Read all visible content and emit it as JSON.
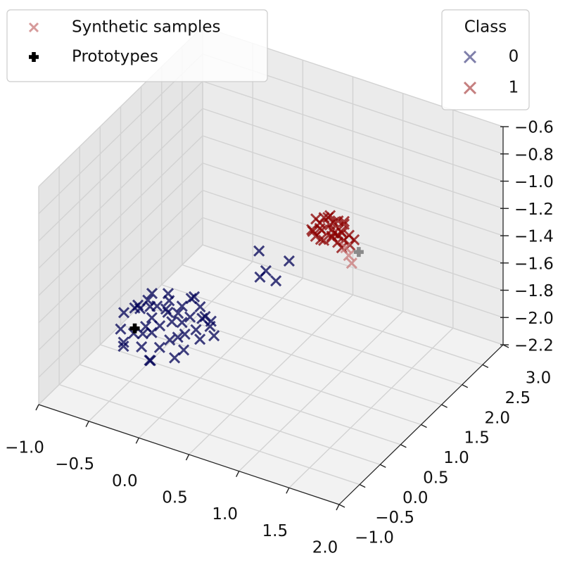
{
  "chart_data": {
    "type": "scatter3d",
    "xlim": [
      -1,
      2
    ],
    "ylim": [
      -1,
      3
    ],
    "zlim": [
      -2.2,
      -0.6
    ],
    "xticks": [
      {
        "value": -1,
        "label": "−1.0"
      },
      {
        "value": -0.5,
        "label": "−0.5"
      },
      {
        "value": 0,
        "label": "0.0"
      },
      {
        "value": 0.5,
        "label": "0.5"
      },
      {
        "value": 1,
        "label": "1.0"
      },
      {
        "value": 1.5,
        "label": "1.5"
      },
      {
        "value": 2,
        "label": "2.0"
      }
    ],
    "yticks": [
      {
        "value": -1,
        "label": "−1.0"
      },
      {
        "value": -0.5,
        "label": "−0.5"
      },
      {
        "value": 0,
        "label": "0.0"
      },
      {
        "value": 0.5,
        "label": "0.5"
      },
      {
        "value": 1,
        "label": "1.0"
      },
      {
        "value": 1.5,
        "label": "1.5"
      },
      {
        "value": 2,
        "label": "2.0"
      },
      {
        "value": 2.5,
        "label": "2.5"
      },
      {
        "value": 3,
        "label": "3.0"
      }
    ],
    "zticks": [
      {
        "value": -2.2,
        "label": "−2.2"
      },
      {
        "value": -2.0,
        "label": "−2.0"
      },
      {
        "value": -1.8,
        "label": "−1.8"
      },
      {
        "value": -1.6,
        "label": "−1.6"
      },
      {
        "value": -1.4,
        "label": "−1.4"
      },
      {
        "value": -1.2,
        "label": "−1.2"
      },
      {
        "value": -1.0,
        "label": "−1.0"
      },
      {
        "value": -0.8,
        "label": "−0.8"
      },
      {
        "value": -0.6,
        "label": "−0.6"
      }
    ],
    "grid": true,
    "legend_title": "Class",
    "series": [
      {
        "name": "0",
        "color": "#000055",
        "marker": "x",
        "legend": "upper right",
        "x": [
          -0.6,
          -0.55,
          -0.5,
          -0.48,
          -0.45,
          -0.42,
          -0.4,
          -0.38,
          -0.35,
          -0.33,
          -0.3,
          -0.28,
          -0.26,
          -0.24,
          -0.22,
          -0.2,
          -0.18,
          -0.16,
          -0.14,
          -0.12,
          -0.1,
          -0.08,
          -0.06,
          -0.04,
          -0.02,
          0.0,
          0.02,
          0.05,
          0.08,
          0.1,
          0.12,
          0.15,
          0.18,
          0.22,
          0.25,
          0.3,
          -0.52,
          -0.44,
          -0.36,
          -0.3,
          -0.25,
          -0.15,
          -0.05,
          0.05,
          0.1,
          0.45,
          0.35,
          0.55,
          0.6,
          0.3
        ],
        "y": [
          0.1,
          -0.1,
          0.2,
          -0.2,
          0.0,
          0.3,
          -0.15,
          0.15,
          -0.05,
          0.25,
          0.05,
          -0.25,
          0.35,
          -0.1,
          0.2,
          0.0,
          -0.3,
          0.1,
          0.3,
          -0.2,
          0.05,
          0.25,
          -0.1,
          0.15,
          0.4,
          -0.05,
          0.2,
          0.0,
          0.3,
          -0.15,
          0.1,
          0.25,
          0.05,
          0.2,
          0.15,
          0.1,
          0.3,
          -0.3,
          0.2,
          -0.1,
          0.35,
          -0.35,
          0.4,
          -0.25,
          0.3,
          1.0,
          1.1,
          1.0,
          1.2,
          1.2
        ],
        "z": [
          -1.75,
          -1.8,
          -1.7,
          -1.85,
          -1.65,
          -1.72,
          -1.78,
          -1.62,
          -1.8,
          -1.68,
          -1.7,
          -1.82,
          -1.6,
          -1.75,
          -1.66,
          -1.72,
          -1.88,
          -1.64,
          -1.7,
          -1.8,
          -1.68,
          -1.62,
          -1.76,
          -1.7,
          -1.58,
          -1.74,
          -1.66,
          -1.72,
          -1.6,
          -1.78,
          -1.7,
          -1.64,
          -1.74,
          -1.68,
          -1.62,
          -1.7,
          -1.76,
          -1.84,
          -1.58,
          -1.72,
          -1.65,
          -1.86,
          -1.6,
          -1.82,
          -1.68,
          -1.45,
          -1.55,
          -1.5,
          -1.4,
          -1.4
        ]
      },
      {
        "name": "1",
        "color": "#8b0000",
        "marker": "x",
        "legend": "upper right",
        "x": [
          0.5,
          0.55,
          0.6,
          0.65,
          0.7,
          0.75,
          0.8,
          0.85,
          0.9,
          0.58,
          0.62,
          0.68,
          0.72,
          0.78,
          0.82,
          0.52,
          0.66,
          0.74,
          0.88,
          0.6,
          0.7,
          0.8,
          0.56,
          0.64,
          0.76,
          0.84,
          0.54,
          0.68,
          0.86,
          0.72
        ],
        "y": [
          2.1,
          1.9,
          2.15,
          1.85,
          2.0,
          2.1,
          1.9,
          2.05,
          1.95,
          2.0,
          1.8,
          2.2,
          1.95,
          2.1,
          1.85,
          1.95,
          2.05,
          1.9,
          2.1,
          2.2,
          1.8,
          2.0,
          2.05,
          1.9,
          2.15,
          1.95,
          2.2,
          2.1,
          1.85,
          2.0
        ],
        "z": [
          -1.38,
          -1.4,
          -1.36,
          -1.42,
          -1.38,
          -1.41,
          -1.37,
          -1.4,
          -1.43,
          -1.36,
          -1.39,
          -1.38,
          -1.42,
          -1.35,
          -1.4,
          -1.41,
          -1.37,
          -1.39,
          -1.44,
          -1.36,
          -1.4,
          -1.38,
          -1.42,
          -1.37,
          -1.35,
          -1.41,
          -1.39,
          -1.36,
          -1.43,
          -1.4
        ]
      },
      {
        "name": "Synthetic samples",
        "color": "#c87878",
        "marker": "x",
        "legend": "upper left",
        "x": [
          0.95,
          1.0,
          0.9
        ],
        "y": [
          1.8,
          1.75,
          1.85
        ],
        "z": [
          -1.45,
          -1.48,
          -1.42
        ]
      },
      {
        "name": "Prototypes",
        "color": "#000000",
        "colors": [
          "#000000",
          "#8a8a8a"
        ],
        "marker": "plus",
        "legend": "upper left",
        "x": [
          -0.45,
          1.05
        ],
        "y": [
          0.0,
          1.8
        ],
        "z": [
          -1.8,
          -1.4
        ]
      }
    ]
  }
}
